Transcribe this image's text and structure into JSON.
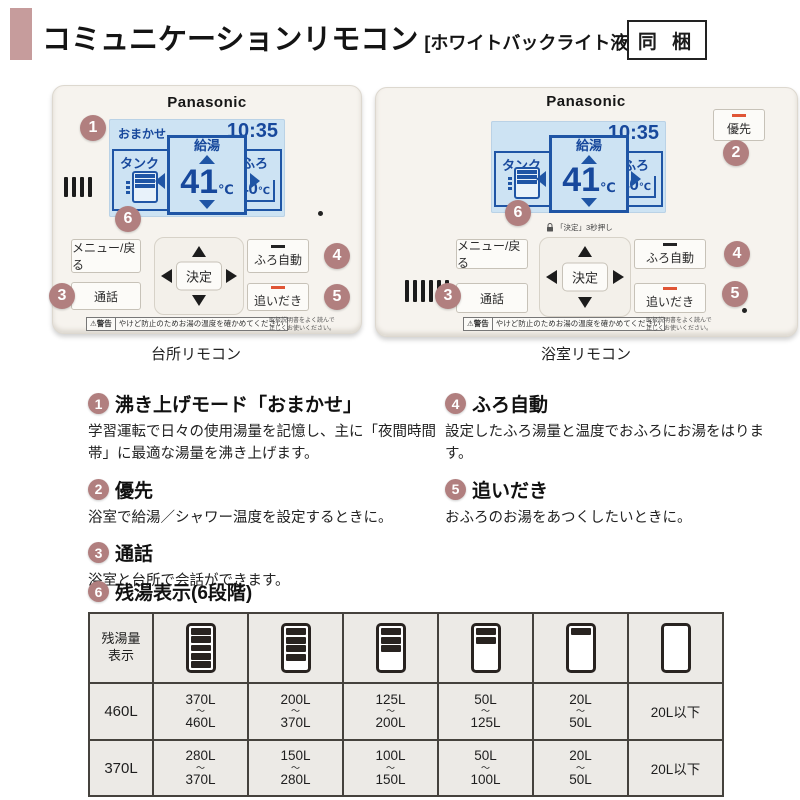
{
  "header": {
    "title": "コミュニケーションリモコン",
    "subtitle": "[ホワイトバックライト液晶]",
    "badge": "同 梱"
  },
  "kitchen_remote": {
    "brand": "Panasonic",
    "caption": "台所リモコン",
    "screen": {
      "mode": "おまかせ",
      "time": "10:35",
      "tank_label": "タンク",
      "supply_label": "給湯",
      "temp_value": "41",
      "temp_unit": "℃",
      "bath_label": "ふろ",
      "bath_value": "40",
      "bath_unit": "℃"
    },
    "buttons": {
      "menu_back": "メニュー/戻る",
      "talk": "通話",
      "enter": "決定",
      "bath_auto": "ふろ自動",
      "reheat": "追いだき"
    },
    "warning": {
      "label": "警告",
      "icon": "⚠",
      "text": "やけど防止のためお湯の温度を確かめてください",
      "note": "取扱説明書をよく読んで\n正しくお使いください。"
    }
  },
  "bathroom_remote": {
    "brand": "Panasonic",
    "caption": "浴室リモコン",
    "priority_button": "優先",
    "lock_hint": "「決定」3秒押し",
    "screen": {
      "time": "10:35",
      "tank_label": "タンク",
      "supply_label": "給湯",
      "temp_value": "41",
      "temp_unit": "℃",
      "bath_label": "ふろ",
      "bath_value": "40",
      "bath_unit": "℃"
    },
    "buttons": {
      "menu_back": "メニュー/戻る",
      "talk": "通話",
      "enter": "決定",
      "bath_auto": "ふろ自動",
      "reheat": "追いだき"
    },
    "warning": {
      "label": "警告",
      "icon": "⚠",
      "text": "やけど防止のためお湯の温度を確かめてください",
      "note": "取扱説明書をよく読んで\n正しくお使いください。"
    }
  },
  "features": [
    {
      "num": "1",
      "title": "沸き上げモード「おまかせ」",
      "desc": "学習運転で日々の使用湯量を記憶し、主に「夜間時間帯」に最適な湯量を沸き上げます。"
    },
    {
      "num": "2",
      "title": "優先",
      "desc": "浴室で給湯／シャワー温度を設定するときに。"
    },
    {
      "num": "3",
      "title": "通話",
      "desc": "浴室と台所で会話ができます。"
    },
    {
      "num": "4",
      "title": "ふろ自動",
      "desc": "設定したふろ湯量と温度でおふろにお湯をはります。"
    },
    {
      "num": "5",
      "title": "追いだき",
      "desc": "おふろのお湯をあつくしたいときに。"
    }
  ],
  "tank_section": {
    "num": "6",
    "title": "残湯表示(6段階)",
    "table": {
      "corner_label": "残湯量\n表示",
      "tilde": "〜",
      "icon_levels": [
        5,
        4,
        3,
        2,
        1,
        0
      ],
      "rows": [
        {
          "label": "460L",
          "cells": [
            {
              "from": "370L",
              "to": "460L"
            },
            {
              "from": "200L",
              "to": "370L"
            },
            {
              "from": "125L",
              "to": "200L"
            },
            {
              "from": "50L",
              "to": "125L"
            },
            {
              "from": "20L",
              "to": "50L"
            },
            {
              "single": "20L以下"
            }
          ]
        },
        {
          "label": "370L",
          "cells": [
            {
              "from": "280L",
              "to": "370L"
            },
            {
              "from": "150L",
              "to": "280L"
            },
            {
              "from": "100L",
              "to": "150L"
            },
            {
              "from": "50L",
              "to": "100L"
            },
            {
              "from": "20L",
              "to": "50L"
            },
            {
              "single": "20L以下"
            }
          ]
        }
      ]
    }
  }
}
